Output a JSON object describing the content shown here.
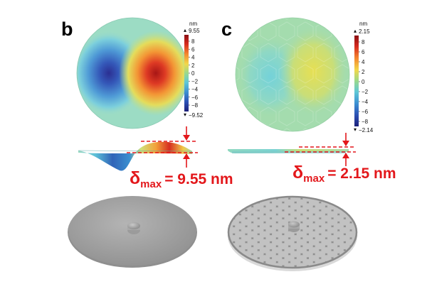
{
  "panels": [
    {
      "letter": "b",
      "colorbar": {
        "unit": "nm",
        "max_label": "9.55",
        "min_label": "−9.52",
        "ticks": [
          "8",
          "6",
          "4",
          "2",
          "0",
          "−2",
          "−4",
          "−6",
          "−8"
        ],
        "min_marker": "▾",
        "max_marker": "▴"
      },
      "delta": {
        "symbol": "δ",
        "subscript": "max",
        "value": "= 9.55 nm"
      },
      "design": "plain plate with central hub"
    },
    {
      "letter": "c",
      "colorbar": {
        "unit": "nm",
        "max_label": "2.15",
        "min_label": "−2.14",
        "ticks": [
          "8",
          "6",
          "4",
          "2",
          "0",
          "−2",
          "−4",
          "−6",
          "−8"
        ],
        "min_marker": "▾",
        "max_marker": "▴"
      },
      "delta": {
        "symbol": "δ",
        "subscript": "max",
        "value": "= 2.15 nm"
      },
      "design": "honeycomb-ribbed plate with central hub"
    }
  ],
  "colors": {
    "annotation_red": "#e3171b",
    "plate_gray": "#a9a9a9",
    "rib_gray": "#8a8a8a",
    "background": "#ffffff"
  },
  "colormap": [
    "#1e2c8a",
    "#2f54b6",
    "#3e90d0",
    "#5cc6d8",
    "#8fd8b0",
    "#bfe08a",
    "#e7df58",
    "#f6ac3c",
    "#ea5a26",
    "#b21818"
  ]
}
